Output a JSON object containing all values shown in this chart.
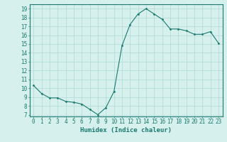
{
  "x": [
    0,
    1,
    2,
    3,
    4,
    5,
    6,
    7,
    8,
    9,
    10,
    11,
    12,
    13,
    14,
    15,
    16,
    17,
    18,
    19,
    20,
    21,
    22,
    23
  ],
  "y": [
    10.3,
    9.4,
    8.9,
    8.9,
    8.5,
    8.4,
    8.2,
    7.6,
    7.0,
    7.8,
    9.6,
    14.8,
    17.2,
    18.4,
    19.0,
    18.4,
    17.8,
    16.7,
    16.7,
    16.5,
    16.1,
    16.1,
    16.4,
    15.1
  ],
  "line_color": "#1a7a6e",
  "marker": "D",
  "marker_size": 1.5,
  "bg_color": "#d6f0ed",
  "grid_color": "#b0d8d4",
  "xlabel": "Humidex (Indice chaleur)",
  "xlabel_fontsize": 6.5,
  "yticks": [
    7,
    8,
    9,
    10,
    11,
    12,
    13,
    14,
    15,
    16,
    17,
    18,
    19
  ],
  "xticks": [
    0,
    1,
    2,
    3,
    4,
    5,
    6,
    7,
    8,
    9,
    10,
    11,
    12,
    13,
    14,
    15,
    16,
    17,
    18,
    19,
    20,
    21,
    22,
    23
  ],
  "ylim": [
    6.8,
    19.5
  ],
  "xlim": [
    -0.5,
    23.5
  ],
  "tick_fontsize": 5.5,
  "tick_color": "#1a7a6e",
  "axis_color": "#1a7a6e"
}
